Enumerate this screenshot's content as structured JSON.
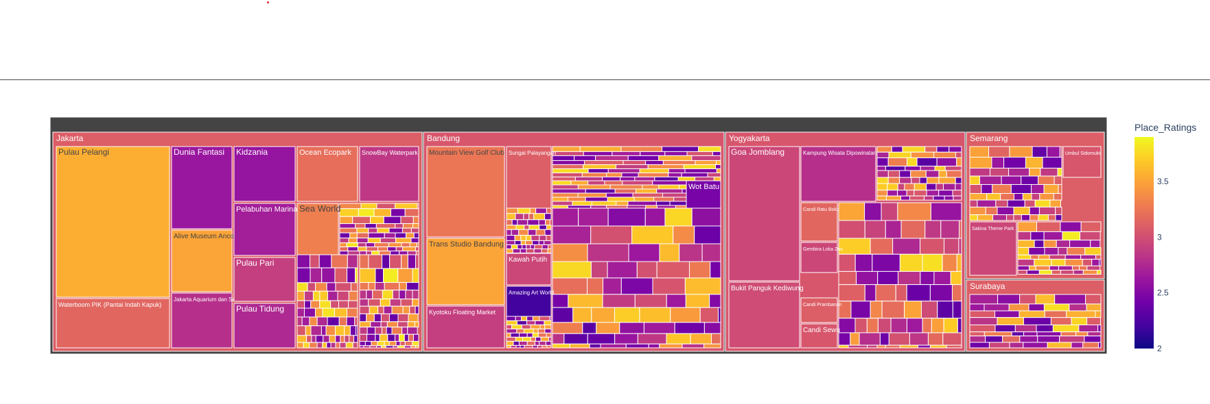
{
  "chart_data": {
    "type": "treemap",
    "root_label": "",
    "colorbar": {
      "title": "Place_Ratings",
      "range": [
        2,
        3.9
      ],
      "ticks": [
        "2",
        "2.5",
        "3",
        "3.5"
      ],
      "colors": [
        "#0d0887",
        "#46039f",
        "#7201a8",
        "#9c179e",
        "#bd3786",
        "#d8576b",
        "#ed7953",
        "#fb9f3a",
        "#fdca26",
        "#f0f921"
      ]
    },
    "cities": [
      {
        "name": "Jakarta",
        "rating": 3.1,
        "places": [
          {
            "name": "Pulau Pelangi",
            "rating": 3.55
          },
          {
            "name": "Waterboom PIK (Pantai Indah Kapuk)",
            "rating": 3.15
          },
          {
            "name": "Dunia Fantasi",
            "rating": 2.62
          },
          {
            "name": "Alive Museum Ancol",
            "rating": 3.5
          },
          {
            "name": "Jakarta Aquarium dan Safari",
            "rating": 2.8
          },
          {
            "name": "Kidzania",
            "rating": 2.6
          },
          {
            "name": "Pelabuhan Marina",
            "rating": 2.68
          },
          {
            "name": "Pulau Pari",
            "rating": 2.9
          },
          {
            "name": "Pulau Tidung",
            "rating": 2.75
          },
          {
            "name": "Ocean Ecopark",
            "rating": 3.2
          },
          {
            "name": "Sea World",
            "rating": 3.3
          },
          {
            "name": "SnowBay Waterpark",
            "rating": 2.85
          }
        ]
      },
      {
        "name": "Bandung",
        "rating": 3.05,
        "places": [
          {
            "name": "Mountain View Golf Club",
            "rating": 3.25
          },
          {
            "name": "Trans Studio Bandung",
            "rating": 3.5
          },
          {
            "name": "Kyotoku Floating Market",
            "rating": 2.9
          },
          {
            "name": "Sungai Palayangan",
            "rating": 3.1
          },
          {
            "name": "Kawah Putih",
            "rating": 2.95
          },
          {
            "name": "Amazing Art World",
            "rating": 2.2
          },
          {
            "name": "Wot Batu",
            "rating": 2.45
          }
        ]
      },
      {
        "name": "Yogyakarta",
        "rating": 3.05,
        "places": [
          {
            "name": "Goa Jomblang",
            "rating": 2.95
          },
          {
            "name": "Bukit Panguk Kediwung",
            "rating": 2.98
          },
          {
            "name": "Kampung Wisata Dipowinatan",
            "rating": 2.8
          },
          {
            "name": "Candi Ratu Boko",
            "rating": 3.15
          },
          {
            "name": "Gembira Loka Zoo",
            "rating": 2.95
          },
          {
            "name": "Candi Prambanan",
            "rating": 3.1
          },
          {
            "name": "Candi Sewu",
            "rating": 3.05
          }
        ]
      },
      {
        "name": "Semarang",
        "rating": 3.1,
        "places": [
          {
            "name": "Umbul Sidomukti",
            "rating": 3.05
          },
          {
            "name": "Sakina Theme Park",
            "rating": 2.95
          }
        ]
      },
      {
        "name": "Surabaya",
        "rating": 3.1,
        "places": []
      }
    ]
  }
}
